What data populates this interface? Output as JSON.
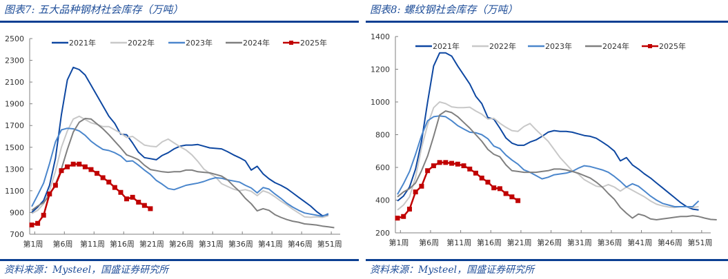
{
  "colors": {
    "accent": "#0b3f92",
    "title_text": "#1f4e99",
    "s2021": "#0d47a1",
    "s2022": "#c8c8c8",
    "s2023": "#4a86cc",
    "s2024": "#7f7f7f",
    "s2025": "#c00000"
  },
  "chart_data": [
    {
      "type": "line",
      "title": "图表7:  五大品种钢材社会库存（万吨）",
      "source": "资料来源：Mysteel，国盛证券研究所",
      "xlabel": "",
      "ylabel": "",
      "ylim": [
        700,
        2500
      ],
      "yticks": [
        "2500",
        "2300",
        "2100",
        "1900",
        "1700",
        "1500",
        "1300",
        "1100",
        "900",
        "700"
      ],
      "ytick_values": [
        2500,
        2300,
        2100,
        1900,
        1700,
        1500,
        1300,
        1100,
        900,
        700
      ],
      "xlim": [
        1,
        53
      ],
      "xticks": [
        "第1周",
        "第6周",
        "第11周",
        "第16周",
        "第21周",
        "第26周",
        "第31周",
        "第36周",
        "第41周",
        "第46周",
        "第51周"
      ],
      "xtick_values": [
        1,
        6,
        11,
        16,
        21,
        26,
        31,
        36,
        41,
        46,
        51
      ],
      "legend_position": "top",
      "series": [
        {
          "name": "2021年",
          "key": "s2021",
          "markers": false,
          "values": [
            900,
            950,
            1010,
            1150,
            1400,
            1800,
            2120,
            2235,
            2215,
            2165,
            2070,
            1975,
            1880,
            1785,
            1720,
            1620,
            1615,
            1540,
            1455,
            1405,
            1395,
            1385,
            1425,
            1450,
            1485,
            1510,
            1520,
            1520,
            1525,
            1510,
            1495,
            1490,
            1485,
            1460,
            1430,
            1405,
            1375,
            1290,
            1325,
            1255,
            1210,
            1175,
            1150,
            1120,
            1080,
            1040,
            1000,
            960,
            910,
            870,
            880
          ]
        },
        {
          "name": "2022年",
          "key": "s2022",
          "markers": false,
          "values": [
            890,
            920,
            980,
            1100,
            1280,
            1500,
            1650,
            1760,
            1785,
            1755,
            1725,
            1710,
            1690,
            1690,
            1660,
            1630,
            1590,
            1600,
            1560,
            1520,
            1510,
            1505,
            1550,
            1575,
            1540,
            1505,
            1475,
            1430,
            1370,
            1300,
            1260,
            1225,
            1165,
            1140,
            1115,
            1100,
            1110,
            1095,
            1055,
            1100,
            1080,
            1045,
            1005,
            970,
            930,
            895,
            860,
            855,
            860,
            855,
            870
          ]
        },
        {
          "name": "2023年",
          "key": "s2023",
          "markers": false,
          "values": [
            955,
            1060,
            1170,
            1350,
            1550,
            1660,
            1675,
            1670,
            1650,
            1610,
            1555,
            1515,
            1480,
            1470,
            1450,
            1420,
            1370,
            1375,
            1335,
            1290,
            1250,
            1195,
            1160,
            1120,
            1110,
            1130,
            1150,
            1160,
            1170,
            1185,
            1205,
            1220,
            1215,
            1200,
            1190,
            1180,
            1150,
            1125,
            1080,
            1130,
            1115,
            1070,
            1030,
            985,
            950,
            920,
            895,
            885,
            875,
            865,
            890
          ]
        },
        {
          "name": "2024年",
          "key": "s2024",
          "markers": false,
          "values": [
            920,
            960,
            990,
            1060,
            1160,
            1300,
            1480,
            1640,
            1730,
            1765,
            1760,
            1715,
            1670,
            1615,
            1555,
            1495,
            1430,
            1410,
            1385,
            1335,
            1295,
            1285,
            1275,
            1270,
            1275,
            1275,
            1290,
            1290,
            1275,
            1270,
            1265,
            1250,
            1235,
            1200,
            1145,
            1095,
            1030,
            980,
            915,
            935,
            920,
            880,
            855,
            835,
            820,
            810,
            795,
            790,
            785,
            775,
            768,
            760
          ]
        },
        {
          "name": "2025年",
          "key": "s2025",
          "markers": true,
          "values": [
            785,
            800,
            875,
            1070,
            1150,
            1285,
            1320,
            1345,
            1345,
            1320,
            1295,
            1260,
            1220,
            1180,
            1130,
            1085,
            1025,
            1040,
            995,
            965,
            935
          ]
        }
      ]
    },
    {
      "type": "line",
      "title": "图表8:  螺纹钢社会库存（万吨）",
      "source": "资料来源：Mysteel，国盛证券研究所",
      "xlabel": "",
      "ylabel": "",
      "ylim": [
        200,
        1400
      ],
      "yticks": [
        "1400",
        "1200",
        "1000",
        "800",
        "600",
        "400",
        "200"
      ],
      "ytick_values": [
        1400,
        1200,
        1000,
        800,
        600,
        400,
        200
      ],
      "xlim": [
        1,
        53
      ],
      "xticks": [
        "第1周",
        "第6周",
        "第11周",
        "第16周",
        "第21周",
        "第26周",
        "第31周",
        "第36周",
        "第41周",
        "第46周",
        "第51周"
      ],
      "xtick_values": [
        1,
        6,
        11,
        16,
        21,
        26,
        31,
        36,
        41,
        46,
        51
      ],
      "legend_position": "top",
      "series": [
        {
          "name": "2021年",
          "key": "s2021",
          "markers": false,
          "values": [
            395,
            425,
            480,
            590,
            760,
            1000,
            1220,
            1300,
            1300,
            1280,
            1220,
            1165,
            1110,
            1035,
            990,
            905,
            895,
            840,
            780,
            748,
            735,
            735,
            755,
            768,
            790,
            815,
            825,
            820,
            820,
            815,
            805,
            795,
            790,
            778,
            755,
            730,
            700,
            640,
            660,
            615,
            590,
            560,
            535,
            505,
            475,
            445,
            415,
            385,
            360,
            345,
            340
          ]
        },
        {
          "name": "2022年",
          "key": "s2022",
          "markers": false,
          "values": [
            340,
            370,
            420,
            540,
            720,
            860,
            965,
            1000,
            990,
            970,
            965,
            965,
            968,
            945,
            925,
            895,
            900,
            870,
            845,
            825,
            820,
            850,
            868,
            830,
            795,
            760,
            710,
            660,
            620,
            580,
            560,
            525,
            505,
            485,
            480,
            495,
            480,
            455,
            480,
            460,
            440,
            420,
            395,
            375,
            365,
            358,
            355,
            360,
            360,
            355,
            360
          ]
        },
        {
          "name": "2023年",
          "key": "s2023",
          "markers": false,
          "values": [
            435,
            500,
            575,
            680,
            795,
            885,
            910,
            915,
            910,
            885,
            855,
            835,
            815,
            812,
            800,
            775,
            730,
            715,
            675,
            645,
            620,
            585,
            570,
            550,
            530,
            540,
            555,
            560,
            565,
            575,
            595,
            610,
            605,
            595,
            585,
            570,
            545,
            515,
            480,
            500,
            485,
            455,
            425,
            400,
            380,
            370,
            360,
            360,
            360,
            360,
            395
          ]
        },
        {
          "name": "2024年",
          "key": "s2024",
          "markers": false,
          "values": [
            420,
            450,
            470,
            505,
            580,
            670,
            790,
            920,
            945,
            935,
            910,
            875,
            840,
            800,
            760,
            710,
            680,
            665,
            615,
            580,
            575,
            570,
            570,
            570,
            575,
            580,
            590,
            590,
            585,
            575,
            565,
            550,
            535,
            510,
            480,
            440,
            405,
            355,
            320,
            290,
            315,
            305,
            285,
            280,
            285,
            290,
            295,
            300,
            300,
            305,
            300,
            290,
            282,
            280
          ]
        },
        {
          "name": "2025年",
          "key": "s2025",
          "markers": true,
          "values": [
            290,
            300,
            345,
            450,
            485,
            580,
            610,
            630,
            630,
            625,
            620,
            610,
            590,
            565,
            535,
            510,
            475,
            470,
            440,
            420,
            397
          ]
        }
      ]
    }
  ]
}
